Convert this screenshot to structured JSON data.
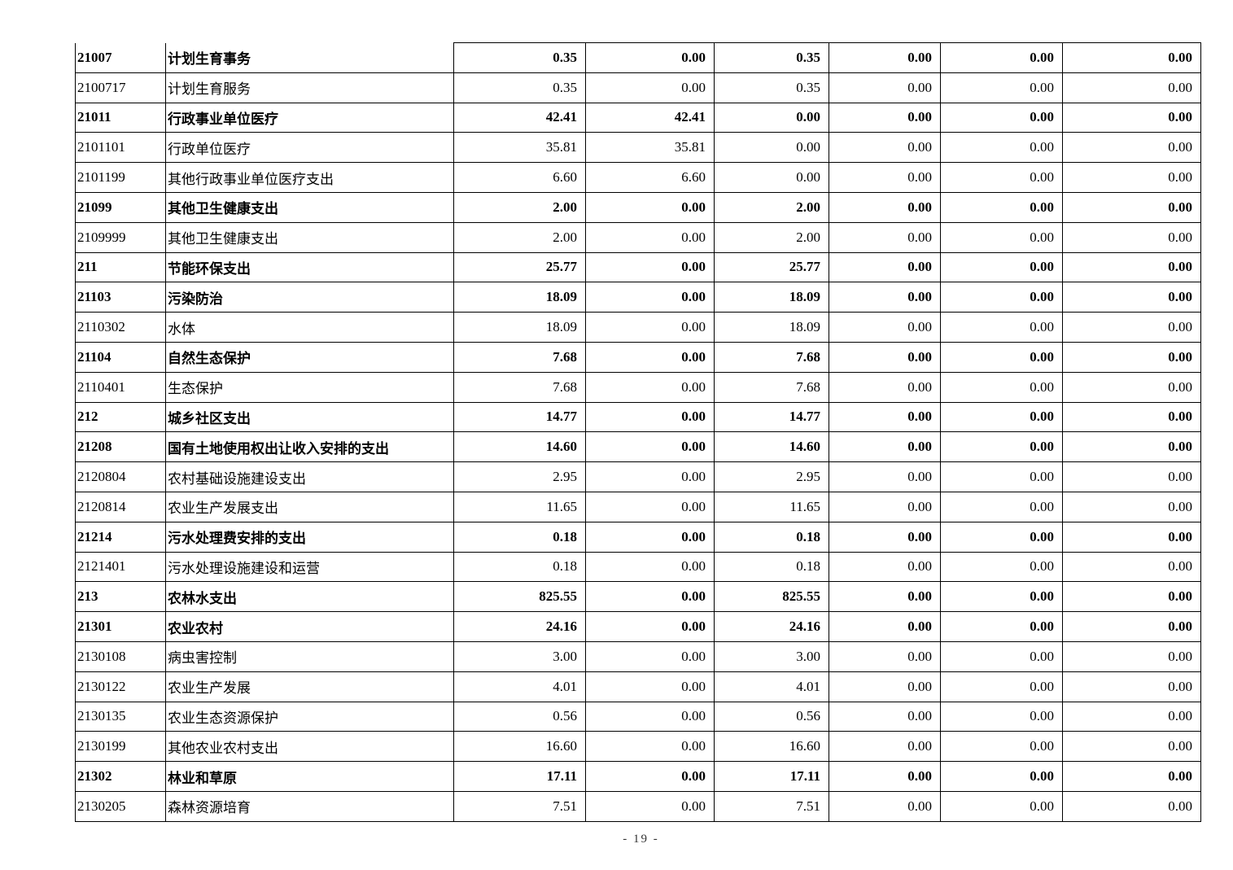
{
  "table": {
    "rows": [
      {
        "code": "21007",
        "name": "计划生育事务",
        "values": [
          "0.35",
          "0.00",
          "0.35",
          "0.00",
          "0.00",
          "0.00"
        ],
        "bold": true
      },
      {
        "code": "2100717",
        "name": "计划生育服务",
        "values": [
          "0.35",
          "0.00",
          "0.35",
          "0.00",
          "0.00",
          "0.00"
        ],
        "bold": false
      },
      {
        "code": "21011",
        "name": "行政事业单位医疗",
        "values": [
          "42.41",
          "42.41",
          "0.00",
          "0.00",
          "0.00",
          "0.00"
        ],
        "bold": true
      },
      {
        "code": "2101101",
        "name": "行政单位医疗",
        "values": [
          "35.81",
          "35.81",
          "0.00",
          "0.00",
          "0.00",
          "0.00"
        ],
        "bold": false
      },
      {
        "code": "2101199",
        "name": "其他行政事业单位医疗支出",
        "values": [
          "6.60",
          "6.60",
          "0.00",
          "0.00",
          "0.00",
          "0.00"
        ],
        "bold": false
      },
      {
        "code": "21099",
        "name": "其他卫生健康支出",
        "values": [
          "2.00",
          "0.00",
          "2.00",
          "0.00",
          "0.00",
          "0.00"
        ],
        "bold": true
      },
      {
        "code": "2109999",
        "name": "其他卫生健康支出",
        "values": [
          "2.00",
          "0.00",
          "2.00",
          "0.00",
          "0.00",
          "0.00"
        ],
        "bold": false
      },
      {
        "code": "211",
        "name": "节能环保支出",
        "values": [
          "25.77",
          "0.00",
          "25.77",
          "0.00",
          "0.00",
          "0.00"
        ],
        "bold": true
      },
      {
        "code": "21103",
        "name": "污染防治",
        "values": [
          "18.09",
          "0.00",
          "18.09",
          "0.00",
          "0.00",
          "0.00"
        ],
        "bold": true
      },
      {
        "code": "2110302",
        "name": "水体",
        "values": [
          "18.09",
          "0.00",
          "18.09",
          "0.00",
          "0.00",
          "0.00"
        ],
        "bold": false
      },
      {
        "code": "21104",
        "name": "自然生态保护",
        "values": [
          "7.68",
          "0.00",
          "7.68",
          "0.00",
          "0.00",
          "0.00"
        ],
        "bold": true
      },
      {
        "code": "2110401",
        "name": "生态保护",
        "values": [
          "7.68",
          "0.00",
          "7.68",
          "0.00",
          "0.00",
          "0.00"
        ],
        "bold": false
      },
      {
        "code": "212",
        "name": "城乡社区支出",
        "values": [
          "14.77",
          "0.00",
          "14.77",
          "0.00",
          "0.00",
          "0.00"
        ],
        "bold": true
      },
      {
        "code": "21208",
        "name": "国有土地使用权出让收入安排的支出",
        "values": [
          "14.60",
          "0.00",
          "14.60",
          "0.00",
          "0.00",
          "0.00"
        ],
        "bold": true
      },
      {
        "code": "2120804",
        "name": "农村基础设施建设支出",
        "values": [
          "2.95",
          "0.00",
          "2.95",
          "0.00",
          "0.00",
          "0.00"
        ],
        "bold": false
      },
      {
        "code": "2120814",
        "name": "农业生产发展支出",
        "values": [
          "11.65",
          "0.00",
          "11.65",
          "0.00",
          "0.00",
          "0.00"
        ],
        "bold": false
      },
      {
        "code": "21214",
        "name": "污水处理费安排的支出",
        "values": [
          "0.18",
          "0.00",
          "0.18",
          "0.00",
          "0.00",
          "0.00"
        ],
        "bold": true
      },
      {
        "code": "2121401",
        "name": "污水处理设施建设和运营",
        "values": [
          "0.18",
          "0.00",
          "0.18",
          "0.00",
          "0.00",
          "0.00"
        ],
        "bold": false
      },
      {
        "code": "213",
        "name": "农林水支出",
        "values": [
          "825.55",
          "0.00",
          "825.55",
          "0.00",
          "0.00",
          "0.00"
        ],
        "bold": true
      },
      {
        "code": "21301",
        "name": "农业农村",
        "values": [
          "24.16",
          "0.00",
          "24.16",
          "0.00",
          "0.00",
          "0.00"
        ],
        "bold": true
      },
      {
        "code": "2130108",
        "name": "病虫害控制",
        "values": [
          "3.00",
          "0.00",
          "3.00",
          "0.00",
          "0.00",
          "0.00"
        ],
        "bold": false
      },
      {
        "code": "2130122",
        "name": "农业生产发展",
        "values": [
          "4.01",
          "0.00",
          "4.01",
          "0.00",
          "0.00",
          "0.00"
        ],
        "bold": false
      },
      {
        "code": "2130135",
        "name": "农业生态资源保护",
        "values": [
          "0.56",
          "0.00",
          "0.56",
          "0.00",
          "0.00",
          "0.00"
        ],
        "bold": false
      },
      {
        "code": "2130199",
        "name": "其他农业农村支出",
        "values": [
          "16.60",
          "0.00",
          "16.60",
          "0.00",
          "0.00",
          "0.00"
        ],
        "bold": false
      },
      {
        "code": "21302",
        "name": "林业和草原",
        "values": [
          "17.11",
          "0.00",
          "17.11",
          "0.00",
          "0.00",
          "0.00"
        ],
        "bold": true
      },
      {
        "code": "2130205",
        "name": "森林资源培育",
        "values": [
          "7.51",
          "0.00",
          "7.51",
          "0.00",
          "0.00",
          "0.00"
        ],
        "bold": false
      }
    ]
  },
  "footer": {
    "page_number": "- 19 -"
  }
}
